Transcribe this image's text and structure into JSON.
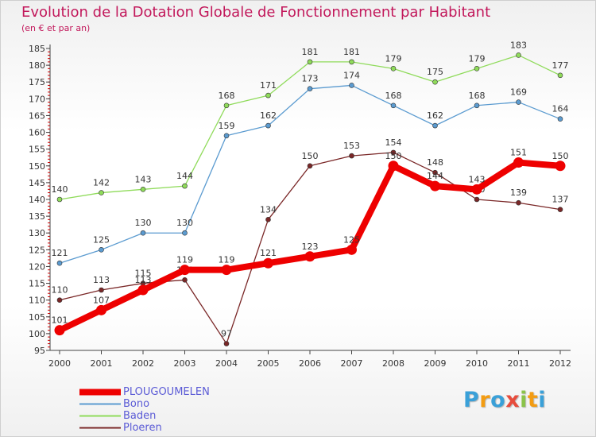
{
  "chart_data": {
    "type": "line",
    "title": "Evolution de la Dotation Globale de Fonctionnement par Habitant",
    "subtitle": "(en € et par an)",
    "xlabel": "",
    "ylabel": "",
    "x": [
      "2000",
      "2001",
      "2002",
      "2003",
      "2004",
      "2005",
      "2006",
      "2007",
      "2008",
      "2009",
      "2010",
      "2011",
      "2012"
    ],
    "ylim": [
      95,
      185
    ],
    "yticks": [
      95,
      100,
      105,
      110,
      115,
      120,
      125,
      130,
      135,
      140,
      145,
      150,
      155,
      160,
      165,
      170,
      175,
      180,
      185
    ],
    "grid": false,
    "legend_position": "bottom-left",
    "series": [
      {
        "name": "Baden",
        "color": "#8fdb5a",
        "values": [
          140,
          142,
          143,
          144,
          168,
          171,
          181,
          181,
          179,
          175,
          179,
          183,
          177
        ]
      },
      {
        "name": "Bono",
        "color": "#5b9bd0",
        "values": [
          121,
          125,
          130,
          130,
          159,
          162,
          173,
          174,
          168,
          162,
          168,
          169,
          164
        ]
      },
      {
        "name": "Ploeren",
        "color": "#7a2727",
        "values": [
          110,
          113,
          115,
          116,
          97,
          134,
          150,
          153,
          154,
          148,
          140,
          139,
          137
        ]
      },
      {
        "name": "PLOUGOUMELEN",
        "color": "#ee0000",
        "values": [
          101,
          107,
          113,
          119,
          119,
          121,
          123,
          125,
          150,
          144,
          143,
          151,
          150
        ]
      }
    ],
    "legend": [
      {
        "name": "PLOUGOUMELEN",
        "color": "#ee0000"
      },
      {
        "name": "Bono",
        "color": "#5b9bd0"
      },
      {
        "name": "Baden",
        "color": "#8fdb5a"
      },
      {
        "name": "Ploeren",
        "color": "#7a2727"
      }
    ]
  },
  "logo": {
    "letters": [
      "P",
      "r",
      "o",
      "x",
      "i",
      "t",
      "i"
    ],
    "colors": [
      "#3aa0d8",
      "#f39c12",
      "#3aa0d8",
      "#e74c3c",
      "#8bc34a",
      "#f39c12",
      "#3aa0d8"
    ]
  }
}
